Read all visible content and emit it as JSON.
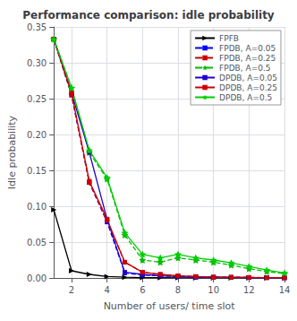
{
  "chart_data": {
    "type": "line",
    "title": "Performance comparison: idle probability",
    "xlabel": "Number of users/ time slot",
    "ylabel": "Idle probability",
    "x": [
      1,
      2,
      3,
      4,
      5,
      6,
      7,
      8,
      9,
      10,
      11,
      12,
      13,
      14
    ],
    "series": [
      {
        "name": "FPFB",
        "color": "#000000",
        "marker": "triangle_right",
        "line_style": "solid",
        "values": [
          0.095,
          0.01,
          0.005,
          0.002,
          0.001,
          0.0005,
          0.0003,
          0.0002,
          0.0001,
          0.0001,
          8e-05,
          6e-05,
          5e-05,
          4e-05
        ]
      },
      {
        "name": "FPDB, A=0.05",
        "color": "#0000ff",
        "marker": "square",
        "line_style": "dashed",
        "values": [
          0.333,
          0.255,
          0.133,
          0.078,
          0.007,
          0.004,
          0.003,
          0.002,
          0.001,
          0.001,
          0.0008,
          0.0006,
          0.0005,
          0.0003
        ]
      },
      {
        "name": "FPDB, A=0.25",
        "color": "#cc0000",
        "marker": "square",
        "line_style": "dashed",
        "values": [
          0.333,
          0.255,
          0.133,
          0.08,
          0.022,
          0.008,
          0.005,
          0.003,
          0.002,
          0.001,
          0.001,
          0.0008,
          0.0005,
          0.0003
        ]
      },
      {
        "name": "FPDB, A=0.5",
        "color": "#00bb00",
        "marker": "star",
        "line_style": "dashed",
        "values": [
          0.333,
          0.265,
          0.175,
          0.138,
          0.06,
          0.025,
          0.022,
          0.028,
          0.025,
          0.022,
          0.018,
          0.013,
          0.009,
          0.006
        ]
      },
      {
        "name": "DPDB, A=0.05",
        "color": "#2200cc",
        "marker": "square",
        "line_style": "solid",
        "values": [
          0.333,
          0.258,
          0.175,
          0.082,
          0.008,
          0.005,
          0.003,
          0.002,
          0.001,
          0.001,
          0.0008,
          0.0005,
          0.0004,
          0.0003
        ]
      },
      {
        "name": "DPDB, A=0.25",
        "color": "#cc0000",
        "marker": "square",
        "line_style": "solid",
        "values": [
          0.333,
          0.258,
          0.135,
          0.082,
          0.022,
          0.008,
          0.005,
          0.003,
          0.002,
          0.001,
          0.001,
          0.0007,
          0.0005,
          0.0003
        ]
      },
      {
        "name": "DPDB, A=0.5",
        "color": "#00cc00",
        "marker": "star",
        "line_style": "solid",
        "values": [
          0.333,
          0.265,
          0.178,
          0.14,
          0.063,
          0.033,
          0.028,
          0.033,
          0.028,
          0.025,
          0.021,
          0.016,
          0.011,
          0.007
        ]
      }
    ],
    "xlim": [
      1,
      14
    ],
    "xticks": [
      2,
      4,
      6,
      8,
      10,
      12,
      14
    ],
    "ylim": [
      0,
      0.35
    ],
    "yticks": [
      {
        "value": 0,
        "label": "0.00"
      },
      {
        "value": 0.05,
        "label": "0.05"
      },
      {
        "value": 0.1,
        "label": "0.10"
      },
      {
        "value": 0.15,
        "label": "0.15"
      },
      {
        "value": 0.2,
        "label": "0.20"
      },
      {
        "value": 0.25,
        "label": "0.25"
      },
      {
        "value": 0.3,
        "label": "0.30"
      },
      {
        "value": 0.35,
        "label": "0.35"
      }
    ],
    "grid": true,
    "legend": "upper right"
  }
}
